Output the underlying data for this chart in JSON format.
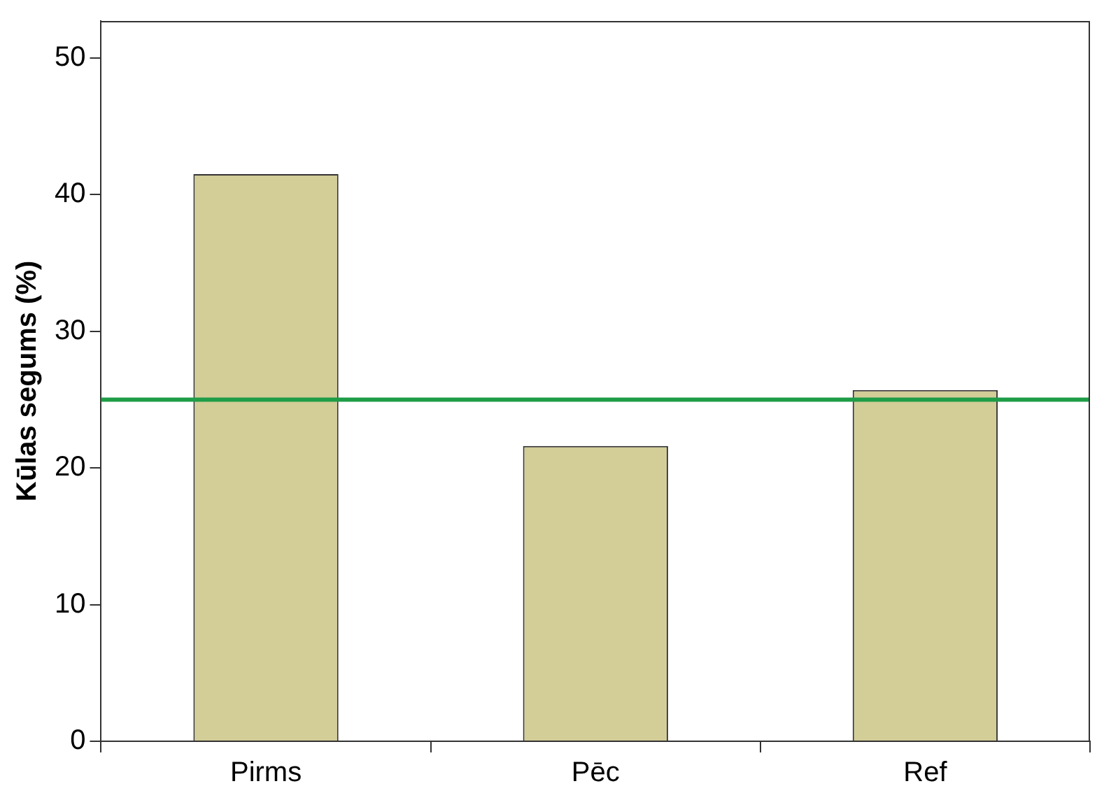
{
  "chart_data": {
    "type": "bar",
    "ylabel": "Kūlas segums (%)",
    "categories": [
      "Pirms",
      "Pēc",
      "Ref"
    ],
    "values": [
      41.5,
      21.6,
      25.7
    ],
    "color": "#d3cd98",
    "ylim": [
      0,
      52.7
    ],
    "yticks": [
      0,
      10,
      20,
      30,
      40,
      50
    ],
    "grid": false,
    "ref_lines": [
      {
        "axis": "y",
        "value": 25,
        "color": "#1e9c46"
      }
    ]
  }
}
